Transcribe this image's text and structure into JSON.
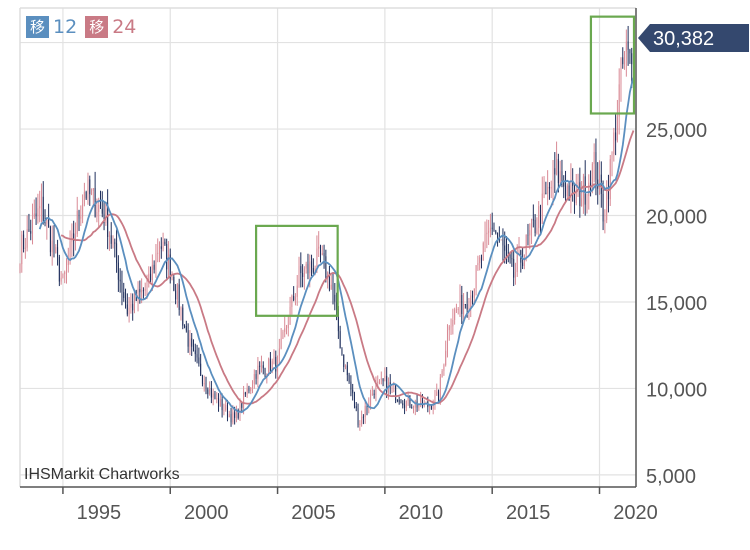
{
  "legend": [
    {
      "badge": "移",
      "label": "12",
      "color": "#5b8fbf"
    },
    {
      "badge": "移",
      "label": "24",
      "color": "#c97a85"
    }
  ],
  "watermark": "IHSMarkit Chartworks",
  "last_price_label": "30,382",
  "colors": {
    "up": "#d98a95",
    "down": "#1f2f5c",
    "ma12": "#5b8fbf",
    "ma24": "#c97a85",
    "highlight": "#6aa84f",
    "tag": "#34486e"
  },
  "chart_data": {
    "type": "candlestick",
    "x_axis": {
      "ticks": [
        1995,
        2000,
        2005,
        2010,
        2015,
        2020
      ],
      "tick_labels": [
        "1995",
        "2000",
        "2005",
        "2010",
        "2015",
        "2020"
      ],
      "range": [
        1993.0,
        2021.7
      ]
    },
    "y_axis": {
      "ticks": [
        5000,
        10000,
        15000,
        20000,
        25000,
        30000
      ],
      "tick_labels": [
        "5,000",
        "10,000",
        "15,000",
        "20,000",
        "25,000",
        ""
      ],
      "range": [
        4300,
        32000
      ]
    },
    "grid": true,
    "last_price": 30382,
    "highlight_boxes": [
      {
        "x": [
          2004.0,
          2007.8
        ],
        "y": [
          14200,
          19400
        ]
      },
      {
        "x": [
          2019.6,
          2022.3
        ],
        "y": [
          25900,
          31500
        ]
      }
    ],
    "key_points": [
      [
        1993.0,
        18000
      ],
      [
        1994.0,
        20500
      ],
      [
        1995.0,
        16000
      ],
      [
        1996.0,
        21500
      ],
      [
        1997.0,
        20000
      ],
      [
        1998.0,
        14500
      ],
      [
        1999.0,
        16000
      ],
      [
        1999.5,
        18500
      ],
      [
        2000.0,
        17000
      ],
      [
        2001.0,
        12000
      ],
      [
        2002.0,
        9500
      ],
      [
        2003.0,
        8200
      ],
      [
        2004.0,
        11000
      ],
      [
        2005.0,
        11500
      ],
      [
        2006.0,
        16500
      ],
      [
        2007.0,
        17500
      ],
      [
        2007.5,
        16000
      ],
      [
        2008.0,
        12000
      ],
      [
        2008.8,
        8000
      ],
      [
        2009.5,
        10000
      ],
      [
        2010.0,
        10300
      ],
      [
        2011.0,
        9200
      ],
      [
        2012.0,
        9000
      ],
      [
        2012.5,
        9500
      ],
      [
        2013.0,
        14000
      ],
      [
        2014.0,
        15500
      ],
      [
        2015.0,
        19500
      ],
      [
        2016.0,
        16500
      ],
      [
        2017.0,
        19500
      ],
      [
        2018.0,
        22500
      ],
      [
        2018.8,
        21000
      ],
      [
        2019.3,
        21500
      ],
      [
        2019.8,
        23000
      ],
      [
        2020.2,
        20000
      ],
      [
        2020.6,
        23500
      ],
      [
        2021.0,
        28000
      ],
      [
        2021.2,
        29500
      ],
      [
        2021.5,
        28500
      ]
    ]
  }
}
